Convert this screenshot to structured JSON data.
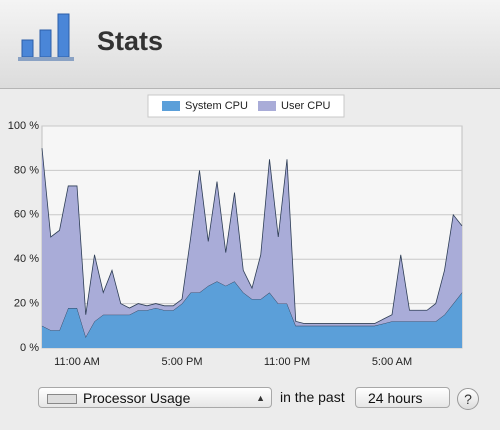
{
  "header": {
    "title": "Stats"
  },
  "chart_data": {
    "type": "area",
    "stacked": true,
    "categories": [
      null,
      null,
      null,
      null,
      "11:00 AM",
      null,
      null,
      null,
      null,
      null,
      null,
      null,
      null,
      null,
      null,
      null,
      "5:00 PM",
      null,
      null,
      null,
      null,
      null,
      null,
      null,
      null,
      null,
      null,
      null,
      "11:00 PM",
      null,
      null,
      null,
      null,
      null,
      null,
      null,
      null,
      null,
      null,
      null,
      "5:00 AM",
      null,
      null,
      null,
      null,
      null,
      null,
      null,
      null
    ],
    "series": [
      {
        "name": "System CPU",
        "color": "#5b9fd9",
        "values": [
          10,
          8,
          8,
          18,
          18,
          5,
          12,
          15,
          15,
          15,
          15,
          17,
          17,
          18,
          17,
          17,
          20,
          25,
          25,
          28,
          30,
          28,
          30,
          25,
          22,
          22,
          25,
          20,
          20,
          10,
          10,
          10,
          10,
          10,
          10,
          10,
          10,
          10,
          10,
          11,
          12,
          12,
          12,
          12,
          12,
          12,
          15,
          20,
          25
        ]
      },
      {
        "name": "User CPU",
        "color": "#a9acd8",
        "values": [
          80,
          42,
          45,
          55,
          55,
          10,
          30,
          10,
          20,
          5,
          3,
          3,
          2,
          2,
          2,
          2,
          2,
          25,
          55,
          20,
          45,
          15,
          40,
          10,
          5,
          20,
          60,
          30,
          65,
          2,
          1,
          1,
          1,
          1,
          1,
          1,
          1,
          1,
          1,
          2,
          3,
          30,
          5,
          5,
          5,
          8,
          20,
          40,
          30
        ]
      }
    ],
    "ylim": [
      0,
      100
    ],
    "yticks": [
      {
        "value": 0,
        "label": "0 %"
      },
      {
        "value": 20,
        "label": "20 %"
      },
      {
        "value": 40,
        "label": "40 %"
      },
      {
        "value": 60,
        "label": "60 %"
      },
      {
        "value": 80,
        "label": "80 %"
      },
      {
        "value": 100,
        "label": "100 %"
      }
    ],
    "grid": true,
    "legend": "top"
  },
  "controls": {
    "metric": "Processor Usage",
    "connector": "in the past",
    "period": "24 hours",
    "help": "?"
  }
}
